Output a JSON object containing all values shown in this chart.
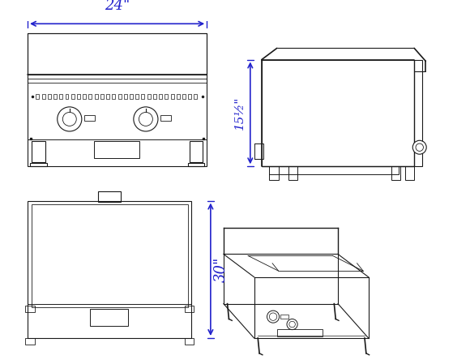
{
  "bg_color": "#ffffff",
  "line_color": "#1a1a1a",
  "dim_color": "#2222cc",
  "fig_width": 5.8,
  "fig_height": 4.49,
  "dpi": 100,
  "dim_24_text": "24\"",
  "dim_15_text": "15½\"",
  "dim_30_text": "30\""
}
